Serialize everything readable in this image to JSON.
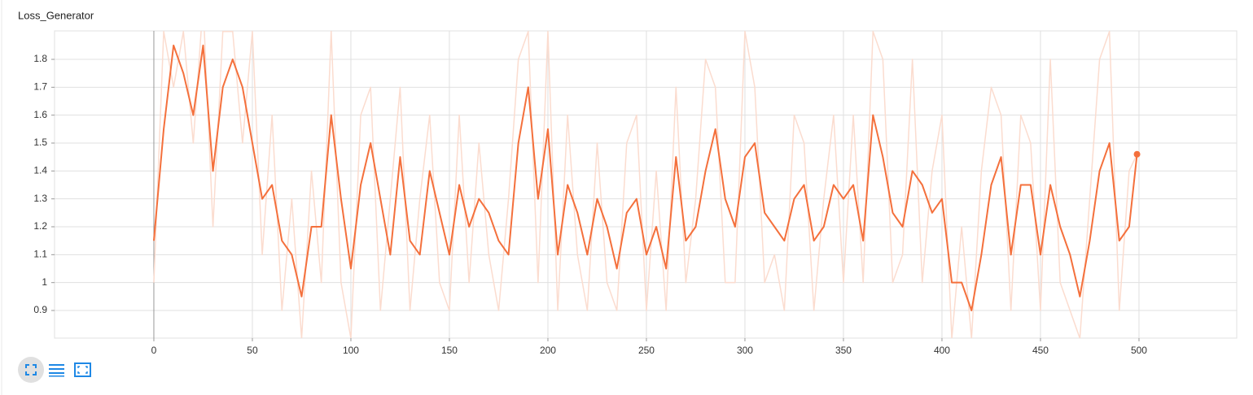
{
  "chart_data": {
    "type": "line",
    "title": "Loss_Generator",
    "x": [
      0,
      5,
      10,
      15,
      20,
      25,
      30,
      35,
      40,
      45,
      50,
      55,
      60,
      65,
      70,
      75,
      80,
      85,
      90,
      95,
      100,
      105,
      110,
      115,
      120,
      125,
      130,
      135,
      140,
      145,
      150,
      155,
      160,
      165,
      170,
      175,
      180,
      185,
      190,
      195,
      200,
      205,
      210,
      215,
      220,
      225,
      230,
      235,
      240,
      245,
      250,
      255,
      260,
      265,
      270,
      275,
      280,
      285,
      290,
      295,
      300,
      305,
      310,
      315,
      320,
      325,
      330,
      335,
      340,
      345,
      350,
      355,
      360,
      365,
      370,
      375,
      380,
      385,
      390,
      395,
      400,
      405,
      410,
      415,
      420,
      425,
      430,
      435,
      440,
      445,
      450,
      455,
      460,
      465,
      470,
      475,
      480,
      485,
      490,
      495,
      499
    ],
    "series": [
      {
        "color": "#fbdccf",
        "values": [
          1.0,
          1.9,
          1.7,
          1.9,
          1.5,
          2.0,
          1.2,
          1.9,
          1.9,
          1.5,
          1.9,
          1.1,
          1.6,
          0.9,
          1.3,
          0.8,
          1.4,
          1.0,
          1.9,
          1.0,
          0.8,
          1.6,
          1.7,
          0.9,
          1.3,
          1.7,
          0.9,
          1.3,
          1.6,
          1.0,
          0.9,
          1.6,
          1.0,
          1.5,
          1.1,
          0.9,
          1.3,
          1.8,
          1.9,
          1.0,
          1.9,
          0.9,
          1.6,
          1.1,
          0.9,
          1.5,
          1.0,
          0.9,
          1.5,
          1.6,
          0.9,
          1.4,
          0.9,
          1.7,
          1.0,
          1.3,
          1.8,
          1.7,
          1.0,
          1.0,
          1.9,
          1.7,
          1.0,
          1.1,
          0.9,
          1.6,
          1.5,
          0.9,
          1.3,
          1.6,
          1.0,
          1.6,
          1.0,
          1.9,
          1.8,
          1.0,
          1.1,
          1.8,
          1.0,
          1.4,
          1.6,
          0.8,
          1.2,
          0.8,
          1.4,
          1.7,
          1.6,
          0.9,
          1.6,
          1.5,
          0.9,
          1.8,
          1.0,
          0.9,
          0.8,
          1.3,
          1.8,
          1.9,
          0.9,
          1.4,
          1.46
        ]
      },
      {
        "color": "#f4703c",
        "values": [
          1.15,
          1.55,
          1.85,
          1.75,
          1.6,
          1.85,
          1.4,
          1.7,
          1.8,
          1.7,
          1.5,
          1.3,
          1.35,
          1.15,
          1.1,
          0.95,
          1.2,
          1.2,
          1.6,
          1.3,
          1.05,
          1.35,
          1.5,
          1.3,
          1.1,
          1.45,
          1.15,
          1.1,
          1.4,
          1.25,
          1.1,
          1.35,
          1.2,
          1.3,
          1.25,
          1.15,
          1.1,
          1.5,
          1.7,
          1.3,
          1.55,
          1.1,
          1.35,
          1.25,
          1.1,
          1.3,
          1.2,
          1.05,
          1.25,
          1.3,
          1.1,
          1.2,
          1.05,
          1.45,
          1.15,
          1.2,
          1.4,
          1.55,
          1.3,
          1.2,
          1.45,
          1.5,
          1.25,
          1.2,
          1.15,
          1.3,
          1.35,
          1.15,
          1.2,
          1.35,
          1.3,
          1.35,
          1.15,
          1.6,
          1.45,
          1.25,
          1.2,
          1.4,
          1.35,
          1.25,
          1.3,
          1.0,
          1.0,
          0.9,
          1.1,
          1.35,
          1.45,
          1.1,
          1.35,
          1.35,
          1.1,
          1.35,
          1.2,
          1.1,
          0.95,
          1.15,
          1.4,
          1.5,
          1.15,
          1.2,
          1.46
        ]
      }
    ],
    "xlim": [
      -50.4,
      549.6
    ],
    "ylim": [
      0.801,
      1.902
    ],
    "xticks": [
      0,
      50,
      100,
      150,
      200,
      250,
      300,
      350,
      400,
      450,
      500
    ],
    "yticks": [
      0.9,
      1,
      1.1,
      1.2,
      1.3,
      1.4,
      1.5,
      1.6,
      1.7,
      1.8
    ],
    "grid": true
  }
}
